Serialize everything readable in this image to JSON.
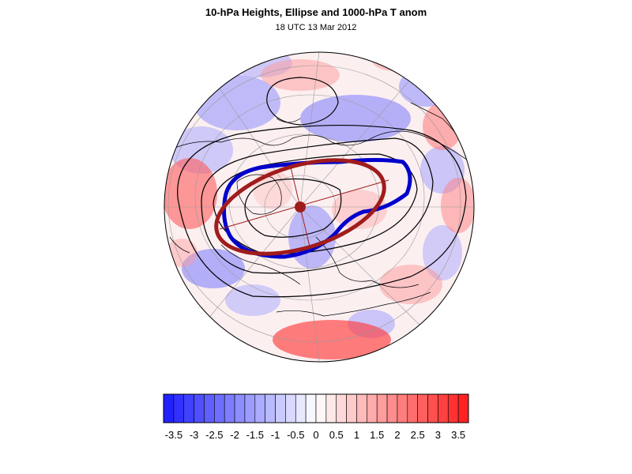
{
  "header": {
    "title": "10-hPa Heights, Ellipse and 1000-hPa T anom",
    "subtitle": "18 UTC 13 Mar 2012"
  },
  "colorbar": {
    "labels": [
      "-3.5",
      "-3",
      "-2.5",
      "-2",
      "-1.5",
      "-1",
      "-0.5",
      "0",
      "0.5",
      "1",
      "1.5",
      "2",
      "2.5",
      "3",
      "3.5"
    ],
    "min": -3.75,
    "max": 3.75,
    "step": 0.25,
    "negative_color": "#1a1aff",
    "positive_color": "#ff1a1a",
    "neutral_color": "#ffffff"
  },
  "map": {
    "projection": "orthographic-north-polar",
    "land_outline_color": "#000000",
    "graticule_color": "#9a9a9a",
    "height_contour_color": "#000000",
    "ellipse_color": "#a01c1c",
    "vortex_edge_color": "#0000cc",
    "centroid_color": "#a01c1c"
  }
}
